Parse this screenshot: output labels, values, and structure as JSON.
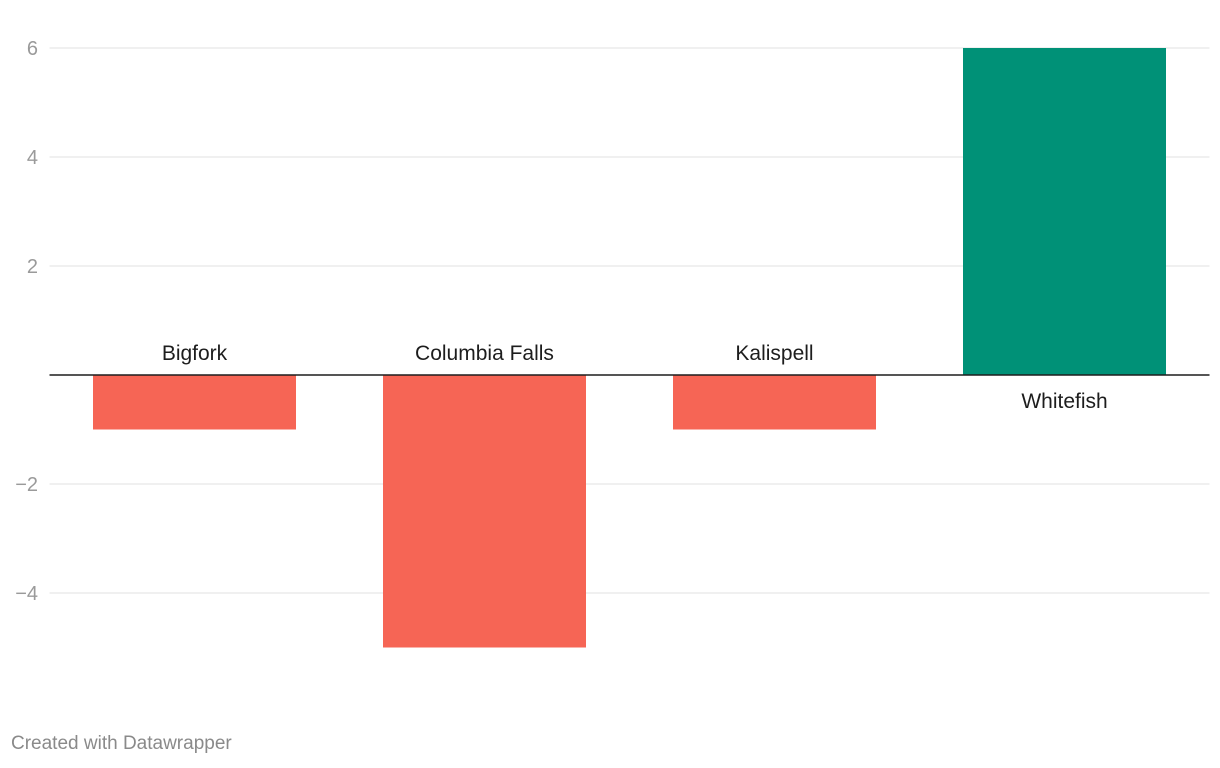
{
  "chart_data": {
    "type": "bar",
    "title": "",
    "xlabel": "",
    "ylabel": "",
    "categories": [
      "Bigfork",
      "Columbia Falls",
      "Kalispell",
      "Whitefish"
    ],
    "values": [
      -1,
      -5,
      -1,
      6
    ],
    "ylim": [
      -5,
      6
    ],
    "yticks": [
      6,
      4,
      2,
      -2,
      -4
    ],
    "ytick_labels": [
      "6",
      "4",
      "2",
      "−2",
      "−4"
    ],
    "grid": true,
    "colors": {
      "negative": "#f66555",
      "positive": "#009177",
      "grid": "#e2e2e2",
      "zero_line": "#1d1d1d"
    }
  },
  "footer": {
    "credit": "Created with Datawrapper"
  }
}
